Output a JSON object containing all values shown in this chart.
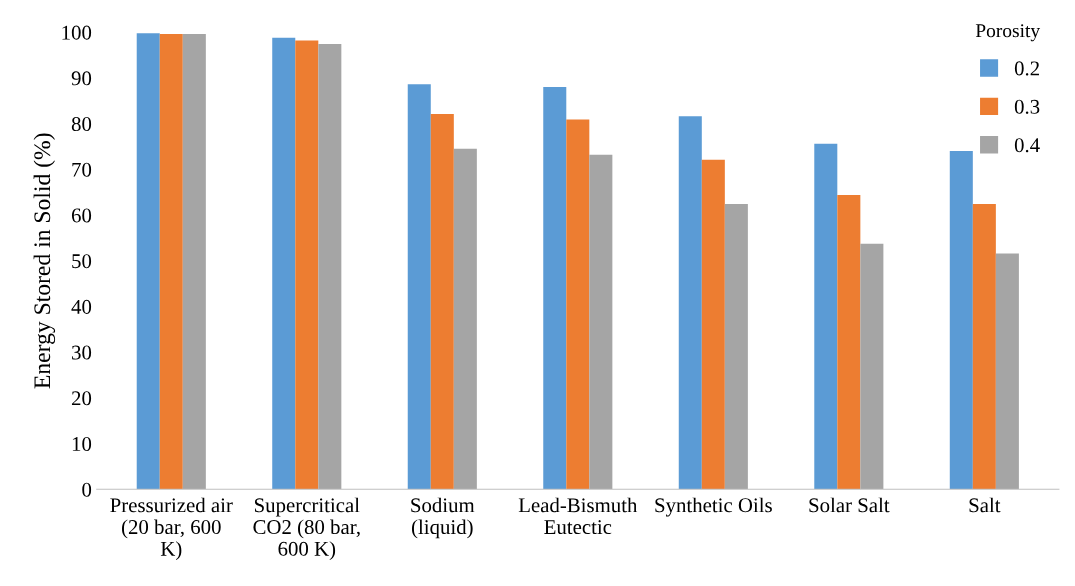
{
  "chart_data": {
    "type": "bar",
    "ylabel": "Energy Stored in Solid (%)",
    "legend_title": "Porosity",
    "legend": "top right",
    "grid": false,
    "categories": [
      "Pressurized air\n(20 bar, 600\nK)",
      "Supercritical\nCO2 (80 bar,\n600 K)",
      "Sodium\n(liquid)",
      "Lead-Bismuth\nEutectic",
      "Synthetic Oils",
      "Solar Salt",
      "Salt"
    ],
    "ylim": [
      0,
      100
    ],
    "yticks": [
      0,
      10,
      20,
      30,
      40,
      50,
      60,
      70,
      80,
      90,
      100
    ],
    "series": [
      {
        "name": "0.2",
        "color": "#5b9bd5",
        "values": [
          99.8,
          98.8,
          88.6,
          88.0,
          81.6,
          75.6,
          74.0
        ]
      },
      {
        "name": "0.3",
        "color": "#ed7d31",
        "values": [
          99.6,
          98.2,
          82.1,
          80.9,
          72.1,
          64.4,
          62.4
        ]
      },
      {
        "name": "0.4",
        "color": "#a5a5a5",
        "values": [
          99.6,
          97.4,
          74.5,
          73.2,
          62.4,
          53.7,
          51.6
        ]
      }
    ]
  }
}
